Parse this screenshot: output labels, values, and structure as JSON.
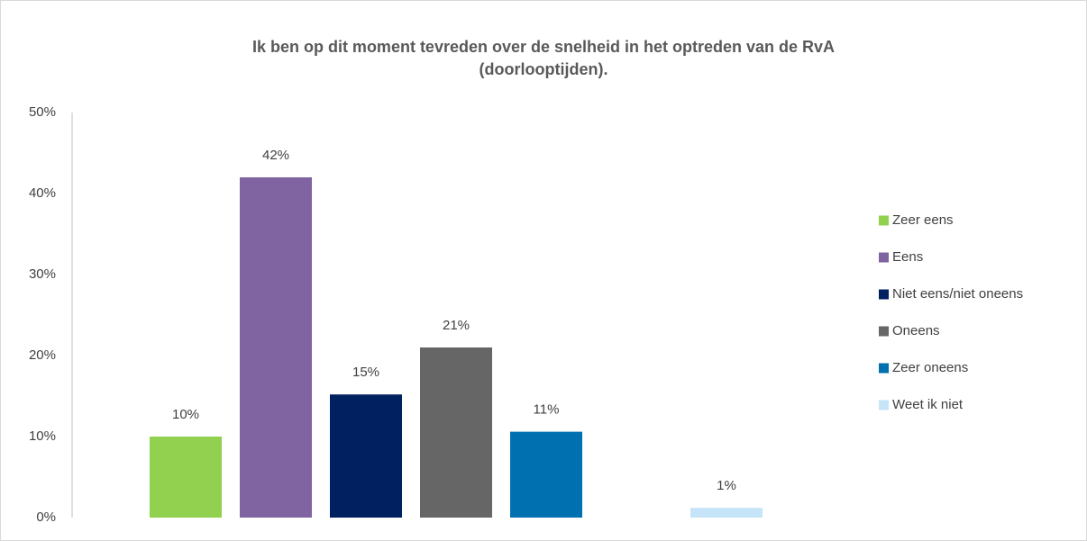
{
  "chart_data": {
    "type": "bar",
    "title": "Ik ben op dit moment tevreden over de snelheid in het optreden van de RvA (doorlooptijden).",
    "series": [
      {
        "name": "Zeer eens",
        "color": "#92d050",
        "values": [
          10
        ],
        "value_labels": [
          "10%"
        ]
      },
      {
        "name": "Eens",
        "color": "#8064a2",
        "values": [
          42
        ],
        "value_labels": [
          "42%"
        ]
      },
      {
        "name": "Niet eens/niet oneens",
        "color": "#002060",
        "values": [
          15.2
        ],
        "value_labels": [
          "15%"
        ]
      },
      {
        "name": "Oneens",
        "color": "#666666",
        "values": [
          21
        ],
        "value_labels": [
          "21%"
        ]
      },
      {
        "name": "Zeer oneens",
        "color": "#0070b0",
        "values": [
          10.6
        ],
        "value_labels": [
          "11%"
        ]
      },
      {
        "name": "Weet ik niet",
        "color": "#c5e4f7",
        "values": [
          1.2
        ],
        "value_labels": [
          "1%"
        ]
      }
    ],
    "ylim": [
      0,
      50
    ],
    "yticks": [
      {
        "value": 0,
        "label": "0%"
      },
      {
        "value": 10,
        "label": "10%"
      },
      {
        "value": 20,
        "label": "20%"
      },
      {
        "value": 30,
        "label": "30%"
      },
      {
        "value": 40,
        "label": "40%"
      },
      {
        "value": 50,
        "label": "50%"
      }
    ],
    "grid": false,
    "legend": "right"
  }
}
